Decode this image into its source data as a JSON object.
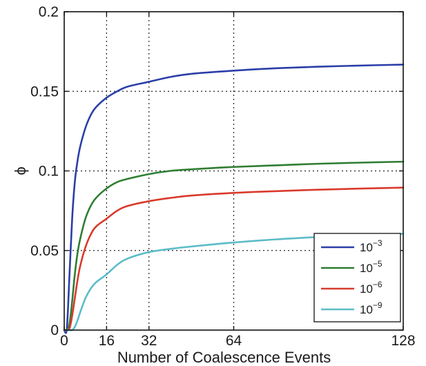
{
  "chart_data": {
    "type": "line",
    "title": "",
    "xlabel": "Number of Coalescence Events",
    "ylabel": "ϕ",
    "xlim": [
      0,
      128
    ],
    "ylim": [
      0,
      0.2
    ],
    "x_ticks": [
      0,
      16,
      32,
      64,
      128
    ],
    "x_tick_labels": [
      "0",
      "16",
      "32",
      "64",
      "128"
    ],
    "y_ticks": [
      0,
      0.05,
      0.1,
      0.15,
      0.2
    ],
    "y_tick_labels": [
      "0",
      "0.05",
      "0.1",
      "0.15",
      "0.2"
    ],
    "grid": true,
    "legend_position": "bottom-right",
    "x": [
      0,
      1,
      2,
      3,
      4,
      5,
      6,
      8,
      10,
      12,
      16,
      20,
      24,
      32,
      40,
      48,
      64,
      80,
      96,
      112,
      128
    ],
    "series": [
      {
        "name": "10",
        "name_exponent": "−3",
        "color": "#2b3ea8",
        "values": [
          0,
          0.001,
          0.035,
          0.07,
          0.093,
          0.106,
          0.115,
          0.127,
          0.135,
          0.14,
          0.146,
          0.15,
          0.153,
          0.156,
          0.159,
          0.161,
          0.163,
          0.1645,
          0.1655,
          0.1662,
          0.1668
        ]
      },
      {
        "name": "10",
        "name_exponent": "−5",
        "color": "#2f7d32",
        "values": [
          0,
          0,
          0.004,
          0.018,
          0.035,
          0.048,
          0.057,
          0.07,
          0.078,
          0.083,
          0.089,
          0.093,
          0.095,
          0.098,
          0.1,
          0.101,
          0.1025,
          0.1035,
          0.1045,
          0.1052,
          0.1058
        ]
      },
      {
        "name": "10",
        "name_exponent": "−6",
        "color": "#d93a2b",
        "values": [
          0,
          0,
          0.001,
          0.009,
          0.02,
          0.031,
          0.04,
          0.052,
          0.06,
          0.065,
          0.07,
          0.075,
          0.078,
          0.081,
          0.083,
          0.0845,
          0.0862,
          0.0873,
          0.0882,
          0.0889,
          0.0895
        ]
      },
      {
        "name": "10",
        "name_exponent": "−9",
        "color": "#5bbcc8",
        "values": [
          0,
          0,
          0,
          0,
          0.002,
          0.006,
          0.011,
          0.02,
          0.026,
          0.03,
          0.035,
          0.041,
          0.045,
          0.049,
          0.051,
          0.0525,
          0.055,
          0.057,
          0.0585,
          0.0597,
          0.0605
        ]
      }
    ]
  }
}
